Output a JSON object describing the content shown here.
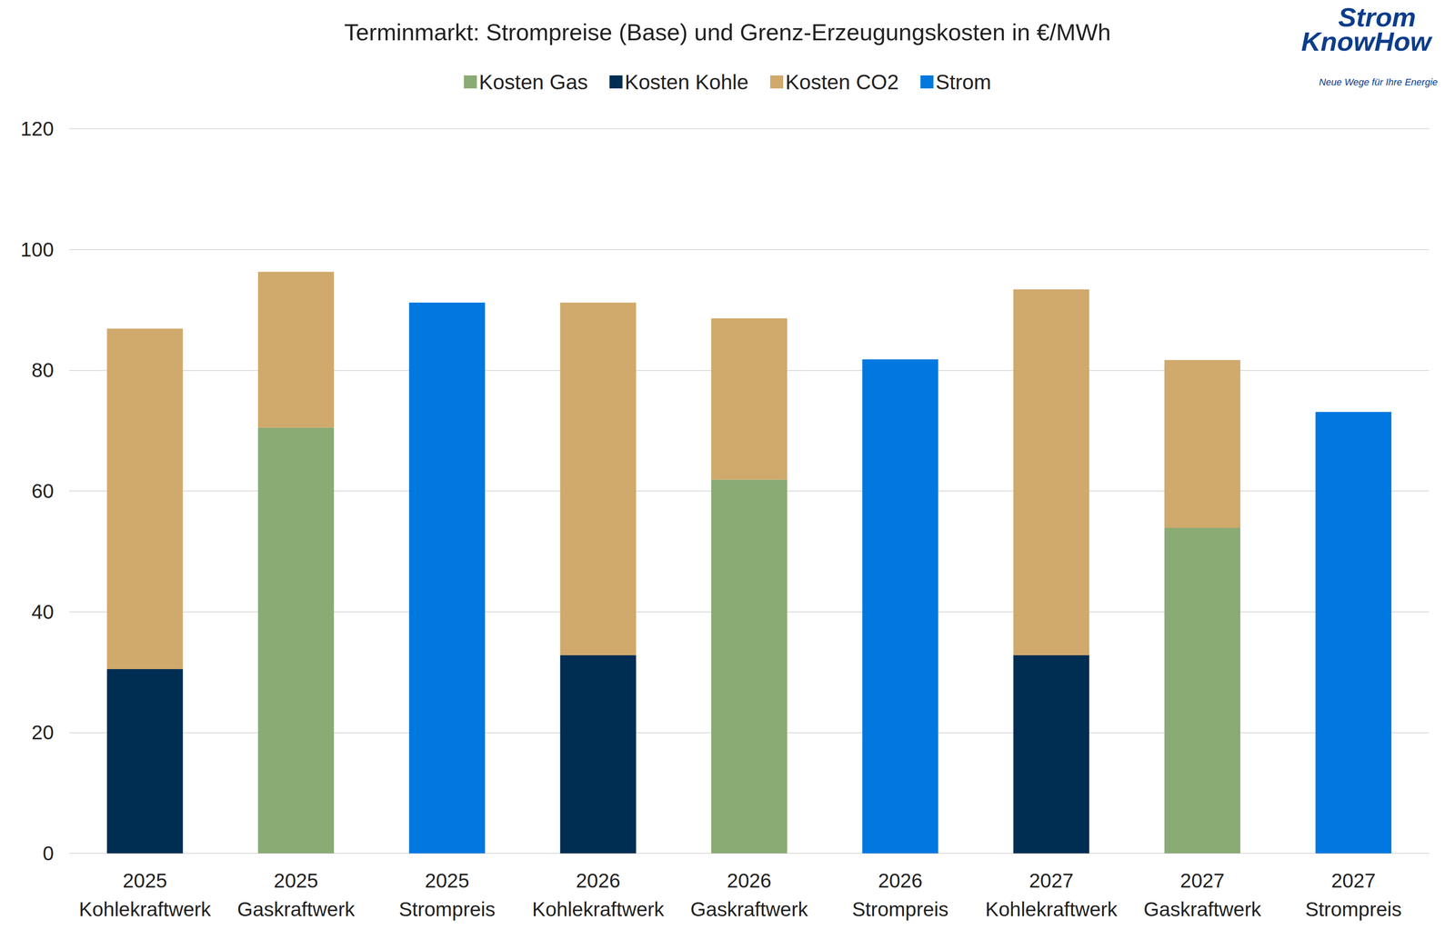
{
  "chart_data": {
    "type": "bar",
    "title": "Terminmarkt: Strompreise (Base) und Grenz-Erzeugungskosten in €/MWh",
    "annotations": [
      "Strom",
      "KnowHow",
      "Neue Wege für Ihre Energie"
    ],
    "categories": [
      "2025\nKohlekraftwerk",
      "2025\nGaskraftwerk",
      "2025\nStrompreis",
      "2026\nKohlekraftwerk",
      "2026\nGaskraftwerk",
      "2026\nStrompreis",
      "2027\nKohlekraftwerk",
      "2027\nGaskraftwerk",
      "2027\nStrompreis"
    ],
    "series": [
      {
        "name": "Kosten Gas",
        "color": "#8aab74",
        "values": [
          null,
          70.5,
          null,
          null,
          61.9,
          null,
          null,
          53.9,
          null
        ]
      },
      {
        "name": "Kosten Kohle",
        "color": "#002d52",
        "values": [
          30.5,
          null,
          null,
          32.8,
          null,
          null,
          32.8,
          null,
          null
        ]
      },
      {
        "name": "Kosten CO2",
        "color": "#d0a96c",
        "values": [
          56.4,
          25.8,
          null,
          58.4,
          26.7,
          null,
          60.6,
          27.8,
          null
        ]
      },
      {
        "name": "Strom",
        "color": "#0078e0",
        "values": [
          null,
          null,
          91.2,
          null,
          null,
          81.8,
          null,
          null,
          73.1
        ]
      }
    ],
    "stacked": true,
    "ylim": [
      0,
      120
    ],
    "yticks": [
      0,
      20,
      40,
      60,
      80,
      100,
      120
    ],
    "grid": true,
    "legend": "top"
  }
}
